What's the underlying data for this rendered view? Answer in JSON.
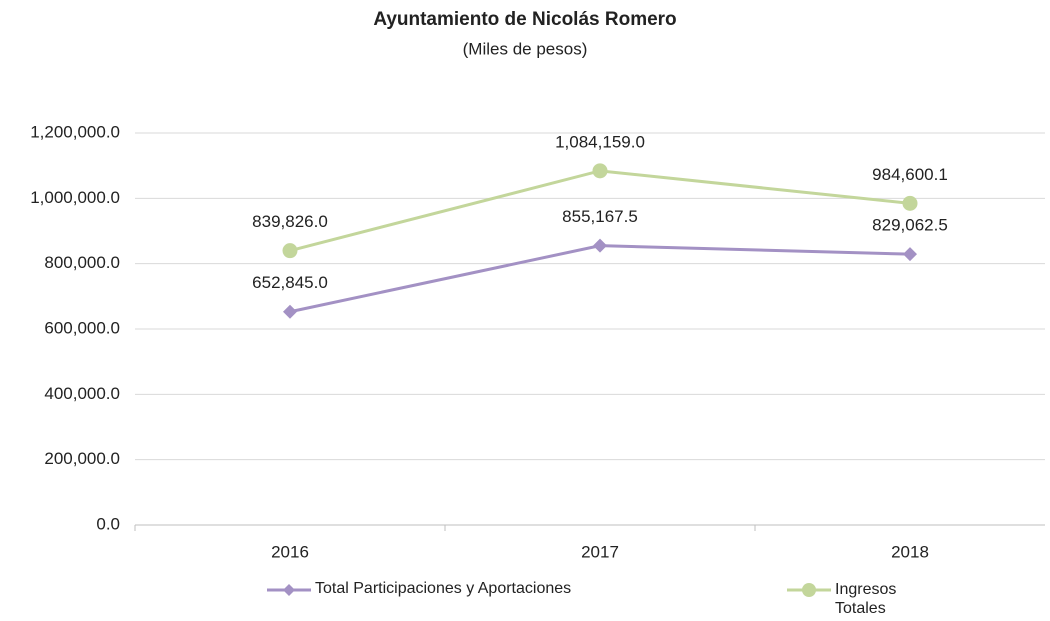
{
  "chart_data": {
    "type": "line",
    "title": "Ayuntamiento de Nicolás Romero",
    "subtitle": "(Miles de pesos)",
    "categories": [
      "2016",
      "2017",
      "2018"
    ],
    "series": [
      {
        "name": "Total Participaciones y Aportaciones",
        "color": "#a391c4",
        "marker": "diamond",
        "values": [
          652845.0,
          855167.5,
          829062.5
        ],
        "value_labels": [
          "652,845.0",
          "855,167.5",
          "829,062.5"
        ]
      },
      {
        "name": "Ingresos Totales",
        "color": "#c3d69b",
        "marker": "circle",
        "values": [
          839826.0,
          1084159.0,
          984600.1
        ],
        "value_labels": [
          "839,826.0",
          "1,084,159.0",
          "984,600.1"
        ]
      }
    ],
    "ylim": [
      0,
      1200000
    ],
    "yticks": [
      {
        "value": 0,
        "label": "0.0"
      },
      {
        "value": 200000,
        "label": "200,000.0"
      },
      {
        "value": 400000,
        "label": "400,000.0"
      },
      {
        "value": 600000,
        "label": "600,000.0"
      },
      {
        "value": 800000,
        "label": "800,000.0"
      },
      {
        "value": 1000000,
        "label": "1,000,000.0"
      },
      {
        "value": 1200000,
        "label": "1,200,000.0"
      }
    ],
    "grid": true
  }
}
